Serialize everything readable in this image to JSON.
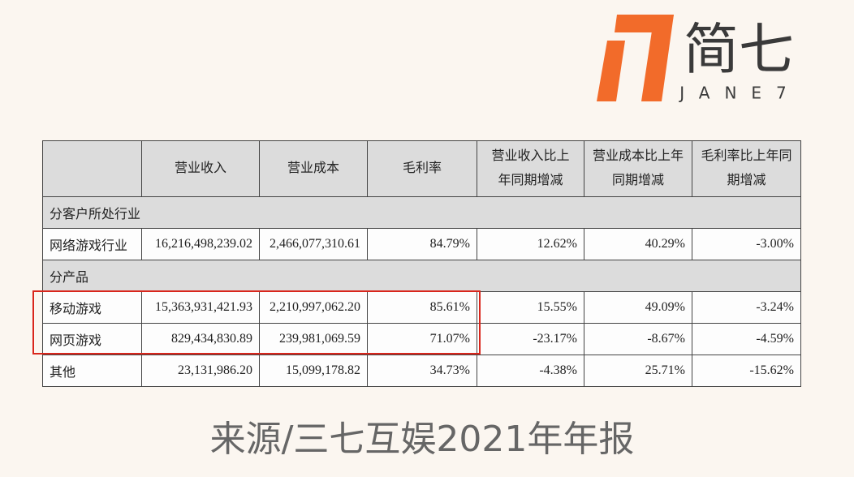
{
  "logo": {
    "text": "简七",
    "subtext": "JANE7"
  },
  "table": {
    "columns": [
      "营业收入",
      "营业成本",
      "毛利率",
      "营业收入比上年同期增减",
      "营业成本比上年同期增减",
      "毛利率比上年同期增减"
    ],
    "rows": [
      {
        "section": "分客户所处行业"
      },
      {
        "cells": [
          "网络游戏行业",
          "16,216,498,239.02",
          "2,466,077,310.61",
          "84.79%",
          "12.62%",
          "40.29%",
          "-3.00%"
        ]
      },
      {
        "section": "分产品"
      },
      {
        "cells": [
          "移动游戏",
          "15,363,931,421.93",
          "2,210,997,062.20",
          "85.61%",
          "15.55%",
          "49.09%",
          "-3.24%"
        ]
      },
      {
        "cells": [
          "网页游戏",
          "829,434,830.89",
          "239,981,069.59",
          "71.07%",
          "-23.17%",
          "-8.67%",
          "-4.59%"
        ]
      },
      {
        "cells": [
          "其他",
          "23,131,986.20",
          "15,099,178.82",
          "34.73%",
          "-4.38%",
          "25.71%",
          "-15.62%"
        ]
      }
    ]
  },
  "caption": "来源/三七互娱2021年年报"
}
